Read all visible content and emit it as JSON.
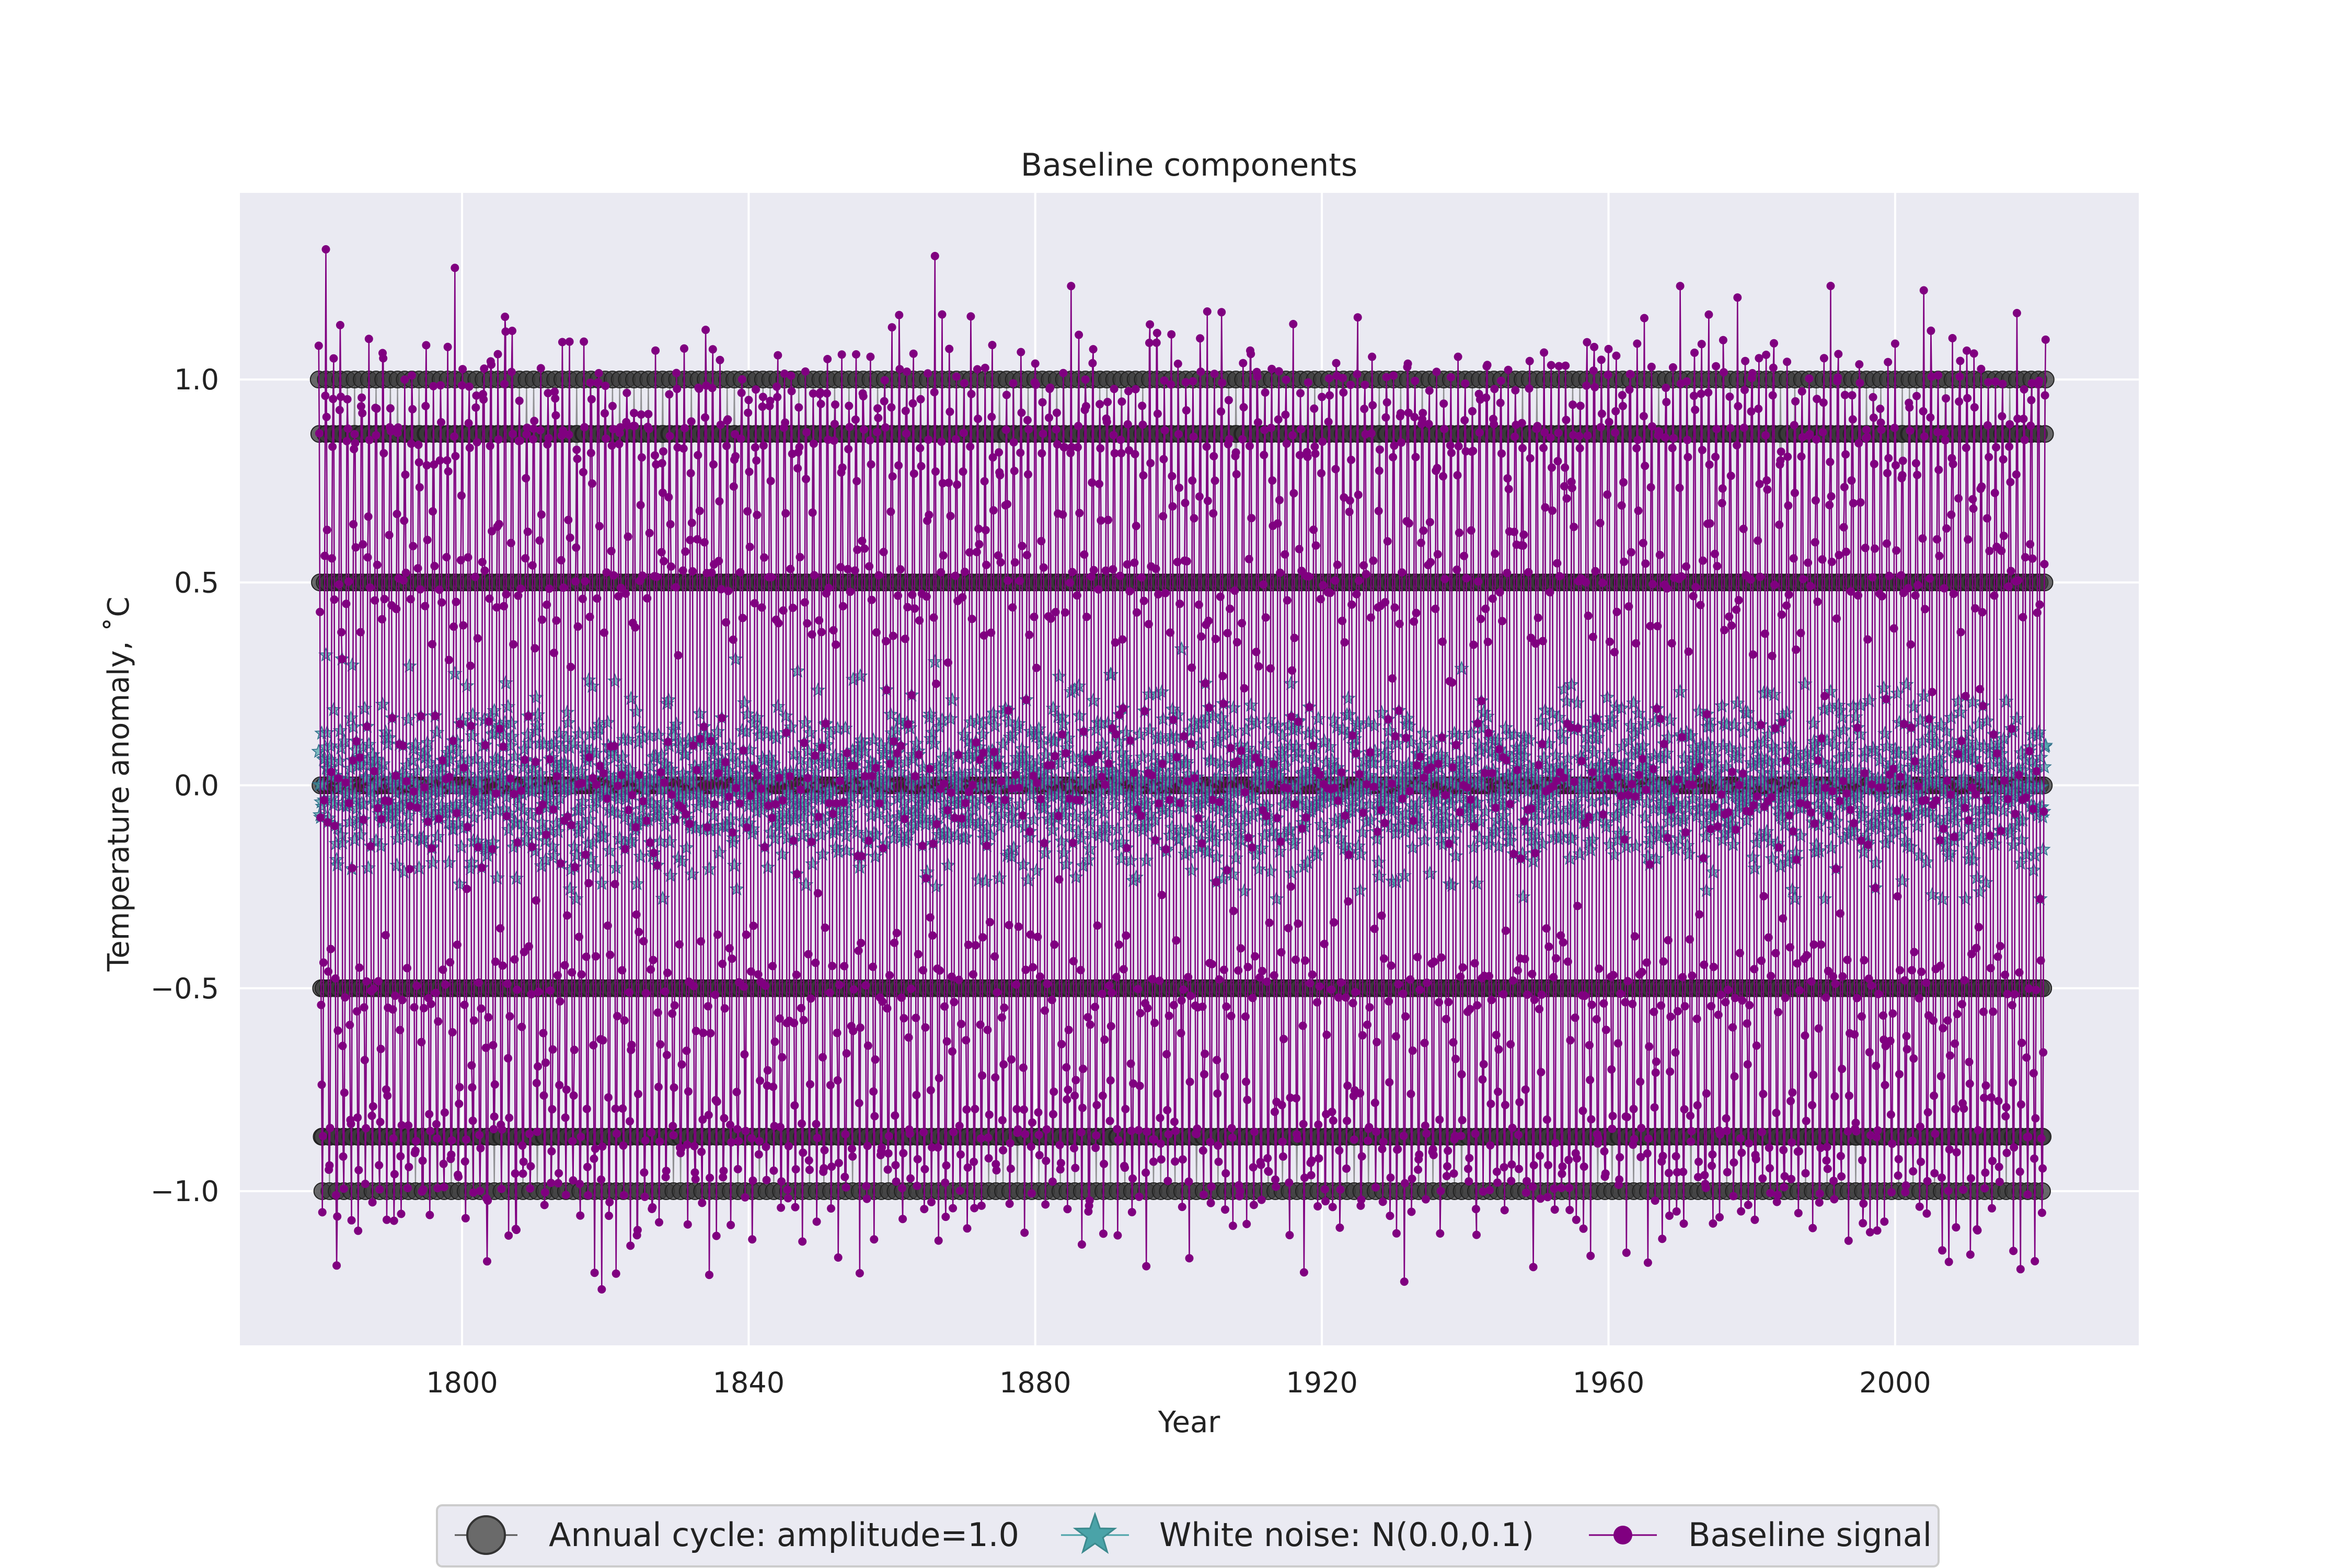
{
  "chart_data": {
    "type": "line",
    "title": "Baseline components",
    "xlabel": "Year",
    "ylabel": "Temperature anomaly, ˚C",
    "xlim": [
      1769,
      2034
    ],
    "ylim": [
      -1.38,
      1.46
    ],
    "x_ticks": [
      1800,
      1840,
      1880,
      1920,
      1960,
      2000
    ],
    "x_tick_labels": [
      "1800",
      "1840",
      "1880",
      "1920",
      "1960",
      "2000"
    ],
    "y_ticks": [
      -1.0,
      -0.5,
      0.0,
      0.5,
      1.0
    ],
    "y_tick_labels": [
      "−1.0",
      "−0.5",
      "0.0",
      "0.5",
      "1.0"
    ],
    "x_range": [
      1780,
      2021
    ],
    "samples_per_year": 12,
    "grid": true,
    "background": "#eaeaf2",
    "legend_position": "bottom-center",
    "series": [
      {
        "name": "Annual cycle: amplitude=1.0",
        "kind": "sinusoid",
        "amplitude": 1.0,
        "period_years": 1,
        "levels": [
          1.0,
          0.866,
          0.5,
          0.0,
          -0.5,
          -0.866,
          -1.0
        ],
        "color": "#555555",
        "marker": "circle"
      },
      {
        "name": "White noise: N(0.0,0.1)",
        "kind": "noise",
        "mean": 0.0,
        "std": 0.1,
        "range": [
          -0.28,
          0.36
        ],
        "color": "#4aa3a8",
        "marker": "star"
      },
      {
        "name": "Baseline signal",
        "kind": "sum",
        "range": [
          -1.26,
          1.34
        ],
        "color": "#800080",
        "marker": "circle"
      }
    ]
  }
}
